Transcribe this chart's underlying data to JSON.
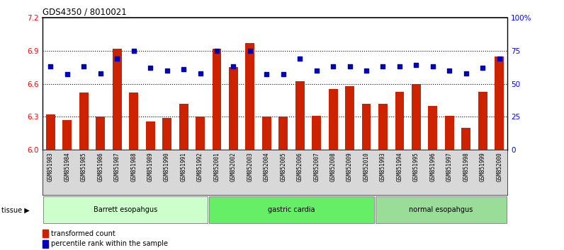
{
  "title": "GDS4350 / 8010021",
  "samples": [
    "GSM851983",
    "GSM851984",
    "GSM851985",
    "GSM851986",
    "GSM851987",
    "GSM851988",
    "GSM851989",
    "GSM851990",
    "GSM851991",
    "GSM851992",
    "GSM852001",
    "GSM852002",
    "GSM852003",
    "GSM852004",
    "GSM852005",
    "GSM852006",
    "GSM852007",
    "GSM852008",
    "GSM852009",
    "GSM852010",
    "GSM851993",
    "GSM851994",
    "GSM851995",
    "GSM851996",
    "GSM851997",
    "GSM851998",
    "GSM851999",
    "GSM852000"
  ],
  "bar_values": [
    6.32,
    6.27,
    6.52,
    6.3,
    6.92,
    6.52,
    6.26,
    6.29,
    6.42,
    6.3,
    6.92,
    6.75,
    6.97,
    6.3,
    6.3,
    6.62,
    6.31,
    6.55,
    6.58,
    6.42,
    6.42,
    6.53,
    6.6,
    6.4,
    6.31,
    6.2,
    6.53,
    6.85
  ],
  "dot_values": [
    63,
    57,
    63,
    58,
    69,
    75,
    62,
    60,
    61,
    58,
    75,
    63,
    75,
    57,
    57,
    69,
    60,
    63,
    63,
    60,
    63,
    63,
    64,
    63,
    60,
    58,
    62,
    69
  ],
  "groups": [
    {
      "label": "Barrett esopahgus",
      "start": 0,
      "end": 9,
      "color": "#ccffcc"
    },
    {
      "label": "gastric cardia",
      "start": 10,
      "end": 19,
      "color": "#66ee66"
    },
    {
      "label": "normal esopahgus",
      "start": 20,
      "end": 27,
      "color": "#99dd99"
    }
  ],
  "ylim_left": [
    6.0,
    7.2
  ],
  "ylim_right": [
    0,
    100
  ],
  "yticks_left": [
    6.0,
    6.3,
    6.6,
    6.9,
    7.2
  ],
  "yticks_right": [
    0,
    25,
    50,
    75,
    100
  ],
  "ytick_labels_right": [
    "0",
    "25",
    "50",
    "75",
    "100%"
  ],
  "bar_color": "#cc2200",
  "dot_color": "#0000bb",
  "bar_width": 0.55,
  "legend_items": [
    {
      "label": "transformed count",
      "color": "#cc2200"
    },
    {
      "label": "percentile rank within the sample",
      "color": "#0000bb"
    }
  ]
}
